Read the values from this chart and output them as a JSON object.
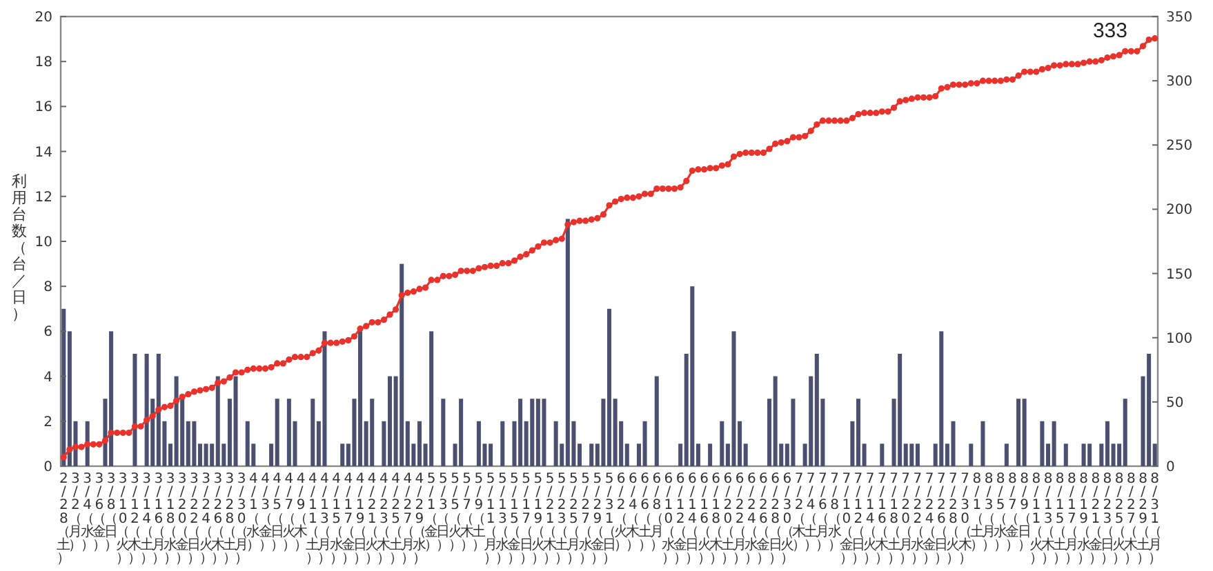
{
  "chart_data": {
    "type": "bar",
    "ylabel": "利用台数（台／日）",
    "categories": [
      "2/28（土）",
      null,
      "3/2（月）",
      null,
      "3/4（水）",
      null,
      "3/6（金）",
      null,
      "3/8（日）",
      null,
      "3/10（火）",
      null,
      "3/12（木）",
      null,
      "3/14（土）",
      null,
      "3/16（月）",
      null,
      "3/18（水）",
      null,
      "3/20（金）",
      null,
      "3/22（日）",
      null,
      "3/24（火）",
      null,
      "3/26（木）",
      null,
      "3/28（土）",
      null,
      "3/30（月）",
      null,
      "4/1（水）",
      null,
      "4/3（金）",
      null,
      "4/5（日）",
      null,
      "4/7（火）",
      null,
      "4/9（木）",
      null,
      "4/11（土）",
      null,
      "4/13（月）",
      null,
      "4/15（水）",
      null,
      "4/17（金）",
      null,
      "4/19（日）",
      null,
      "4/21（火）",
      null,
      "4/23（木）",
      null,
      "4/25（土）",
      null,
      "4/27（月）",
      null,
      "4/29（水）",
      null,
      "5/1（金）",
      null,
      "5/3（日）",
      null,
      "5/5（火）",
      null,
      "5/7（木）",
      null,
      "5/9（土）",
      null,
      "5/11（月）",
      null,
      "5/13（水）",
      null,
      "5/15（金）",
      null,
      "5/17（日）",
      null,
      "5/19（火）",
      null,
      "5/21（木）",
      null,
      "5/23（土）",
      null,
      "5/25（月）",
      null,
      "5/27（水）",
      null,
      "5/29（金）",
      null,
      "5/31（日）",
      null,
      "6/2（火）",
      null,
      "6/4（木）",
      null,
      "6/6（土）",
      null,
      "6/8（月）",
      null,
      "6/10（水）",
      null,
      "6/12（金）",
      null,
      "6/14（日）",
      null,
      "6/16（火）",
      null,
      "6/18（木）",
      null,
      "6/20（土）",
      null,
      "6/22（月）",
      null,
      "6/24（水）",
      null,
      "6/26（金）",
      null,
      "6/28（日）",
      null,
      "6/30（火）",
      null,
      "7/2（木）",
      null,
      "7/4（土）",
      null,
      "7/6（月）",
      null,
      "7/8（水）",
      null,
      "7/10（金）",
      null,
      "7/12（日）",
      null,
      "7/14（火）",
      null,
      "7/16（木）",
      null,
      "7/18（土）",
      null,
      "7/20（月）",
      null,
      "7/22（水）",
      null,
      "7/24（金）",
      null,
      "7/26（日）",
      null,
      "7/28（火）",
      null,
      "7/30（木）",
      null,
      "8/1（土）",
      null,
      "8/3（月）",
      null,
      "8/5（水）",
      null,
      "8/7（金）",
      null,
      "8/9（日）",
      null,
      "8/11（火）",
      null,
      "8/13（木）",
      null,
      "8/15（土）",
      null,
      "8/17（月）",
      null,
      "8/19（水）",
      null,
      "8/21（金）",
      null,
      "8/23（日）",
      null,
      "8/25（火）",
      null,
      "8/27（木）",
      null,
      "8/29（土）",
      null,
      "8/31（月）"
    ],
    "ylim": [
      0,
      20
    ],
    "yticks": [
      0,
      2,
      4,
      6,
      8,
      10,
      12,
      14,
      16,
      18,
      20
    ],
    "y2lim": [
      0,
      350
    ],
    "y2ticks": [
      0,
      50,
      100,
      150,
      200,
      250,
      300,
      350
    ],
    "series": [
      {
        "color": "#4b5071",
        "values": [
          7,
          6,
          2,
          0,
          2,
          0,
          0,
          3,
          6,
          0,
          0,
          0,
          5,
          0,
          5,
          3,
          5,
          2,
          1,
          4,
          3,
          2,
          2,
          1,
          1,
          1,
          4,
          1,
          3,
          4,
          0,
          2,
          1,
          0,
          0,
          1,
          3,
          0,
          3,
          2,
          0,
          0,
          3,
          2,
          6,
          0,
          0,
          1,
          1,
          3,
          6,
          2,
          3,
          0,
          2,
          4,
          4,
          9,
          2,
          1,
          2,
          1,
          6,
          0,
          3,
          0,
          1,
          3,
          0,
          0,
          2,
          1,
          1,
          0,
          2,
          0,
          2,
          3,
          2,
          3,
          3,
          3,
          0,
          2,
          1,
          11,
          2,
          1,
          0,
          1,
          1,
          3,
          7,
          3,
          2,
          1,
          0,
          1,
          2,
          0,
          4,
          0,
          0,
          0,
          1,
          5,
          8,
          1,
          0,
          1,
          0,
          2,
          1,
          6,
          2,
          1,
          0,
          0,
          0,
          3,
          4,
          1,
          1,
          3,
          0,
          1,
          4,
          5,
          3,
          0,
          0,
          0,
          0,
          2,
          3,
          1,
          0,
          0,
          1,
          0,
          3,
          5,
          1,
          1,
          1,
          0,
          0,
          1,
          6,
          1,
          2,
          0,
          0,
          1,
          0,
          2,
          0,
          0,
          0,
          1,
          0,
          3,
          3,
          0,
          0,
          2,
          1,
          2,
          0,
          1,
          0,
          0,
          1,
          1,
          0,
          1,
          2,
          1,
          1,
          3,
          0,
          0,
          4,
          5,
          1
        ]
      },
      {
        "type": "line",
        "axis": "y2",
        "color": "#e8322b",
        "marker": "circle",
        "values": [
          7,
          13,
          15,
          15,
          17,
          17,
          17,
          20,
          26,
          26,
          26,
          26,
          31,
          31,
          36,
          39,
          44,
          46,
          47,
          51,
          54,
          56,
          58,
          59,
          60,
          61,
          65,
          66,
          69,
          73,
          73,
          75,
          76,
          76,
          76,
          77,
          80,
          80,
          83,
          85,
          85,
          85,
          88,
          90,
          96,
          96,
          96,
          97,
          98,
          101,
          107,
          109,
          112,
          112,
          114,
          118,
          122,
          133,
          135,
          136,
          138,
          139,
          145,
          145,
          148,
          148,
          149,
          152,
          152,
          152,
          154,
          155,
          156,
          156,
          158,
          158,
          160,
          163,
          165,
          168,
          171,
          174,
          174,
          176,
          177,
          188,
          190,
          191,
          191,
          192,
          193,
          196,
          203,
          206,
          208,
          209,
          209,
          210,
          212,
          212,
          216,
          216,
          216,
          216,
          217,
          222,
          230,
          231,
          231,
          232,
          232,
          234,
          235,
          241,
          243,
          244,
          244,
          244,
          244,
          247,
          251,
          252,
          253,
          256,
          256,
          257,
          261,
          266,
          269,
          269,
          269,
          269,
          269,
          271,
          274,
          275,
          275,
          275,
          276,
          276,
          279,
          284,
          285,
          286,
          287,
          287,
          287,
          288,
          294,
          295,
          297,
          297,
          297,
          298,
          298,
          300,
          300,
          300,
          300,
          301,
          301,
          304,
          307,
          307,
          307,
          309,
          310,
          312,
          312,
          313,
          313,
          313,
          314,
          315,
          315,
          316,
          318,
          319,
          320,
          323,
          323,
          323,
          327,
          332,
          333
        ]
      }
    ],
    "annotations": [
      "333"
    ]
  }
}
